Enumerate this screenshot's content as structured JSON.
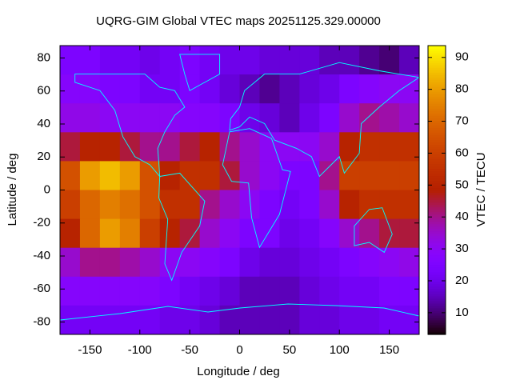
{
  "chart_data": {
    "type": "heatmap",
    "title": "UQRG-GIM Global VTEC maps 20251125.329.00000",
    "x_label": "Longitude / deg",
    "y_label": "Latitude / deg",
    "colorbar_label": "VTEC / TECU",
    "x": [
      -170,
      -150,
      -130,
      -110,
      -90,
      -70,
      -50,
      -30,
      -10,
      10,
      30,
      50,
      70,
      90,
      110,
      130,
      150,
      170
    ],
    "y": [
      78.75,
      61.25,
      43.75,
      26.25,
      8.75,
      -8.75,
      -26.25,
      -43.75,
      -61.25,
      -78.75
    ],
    "values": [
      [
        25,
        25,
        22,
        22,
        20,
        22,
        25,
        22,
        20,
        20,
        18,
        18,
        18,
        15,
        15,
        12,
        10,
        15
      ],
      [
        28,
        28,
        25,
        25,
        22,
        22,
        25,
        22,
        18,
        15,
        12,
        15,
        18,
        20,
        25,
        28,
        30,
        30
      ],
      [
        32,
        32,
        30,
        30,
        30,
        30,
        28,
        28,
        25,
        20,
        18,
        15,
        20,
        25,
        35,
        40,
        38,
        35
      ],
      [
        45,
        50,
        50,
        45,
        40,
        40,
        45,
        50,
        40,
        35,
        30,
        30,
        30,
        35,
        50,
        55,
        55,
        55
      ],
      [
        65,
        80,
        85,
        80,
        65,
        50,
        55,
        55,
        45,
        35,
        30,
        25,
        25,
        40,
        60,
        60,
        60,
        60
      ],
      [
        60,
        70,
        75,
        72,
        65,
        55,
        55,
        40,
        35,
        30,
        25,
        22,
        25,
        35,
        50,
        55,
        55,
        55
      ],
      [
        50,
        70,
        80,
        75,
        60,
        50,
        45,
        35,
        30,
        25,
        25,
        20,
        22,
        28,
        35,
        40,
        45,
        45
      ],
      [
        35,
        40,
        40,
        38,
        35,
        30,
        30,
        28,
        25,
        20,
        18,
        18,
        20,
        22,
        25,
        28,
        30,
        32
      ],
      [
        28,
        28,
        28,
        28,
        28,
        25,
        22,
        20,
        18,
        15,
        15,
        15,
        18,
        20,
        22,
        22,
        25,
        25
      ],
      [
        22,
        22,
        22,
        22,
        22,
        20,
        20,
        18,
        15,
        15,
        15,
        15,
        18,
        18,
        20,
        20,
        22,
        22
      ]
    ],
    "xlim": [
      -180,
      180
    ],
    "ylim": [
      -87.5,
      87.5
    ],
    "xticks": [
      -150,
      -100,
      -50,
      0,
      50,
      100,
      150
    ],
    "yticks": [
      -80,
      -60,
      -40,
      -20,
      0,
      20,
      40,
      60,
      80
    ],
    "clim": [
      3.2,
      93.7
    ],
    "cticks": [
      10,
      20,
      30,
      40,
      50,
      60,
      70,
      80,
      90
    ],
    "palette": "gnuplot",
    "coastline_color": "#00ffff"
  }
}
